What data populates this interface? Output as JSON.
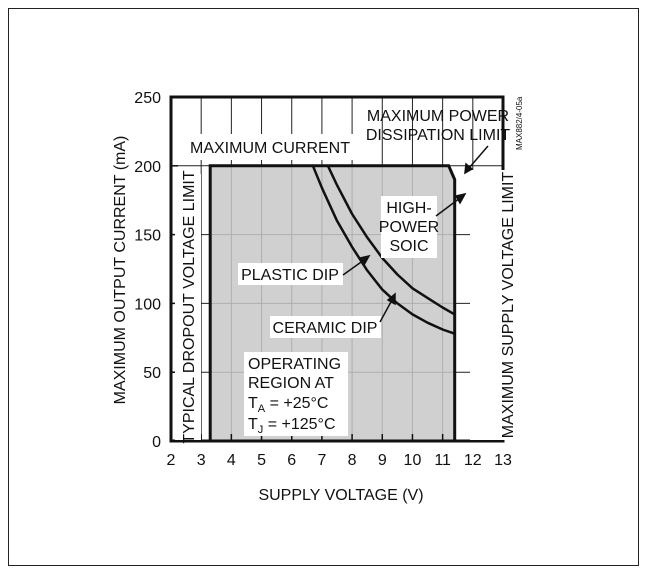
{
  "chart_data": {
    "type": "area",
    "xlabel": "SUPPLY VOLTAGE (V)",
    "ylabel": "MAXIMUM OUTPUT CURRENT (mA)",
    "xlim": [
      2,
      13
    ],
    "ylim": [
      0,
      250
    ],
    "x_ticks": [
      "2",
      "3",
      "4",
      "5",
      "6",
      "7",
      "8",
      "9",
      "10",
      "11",
      "12",
      "13"
    ],
    "y_ticks": [
      "0",
      "50",
      "100",
      "150",
      "200",
      "250"
    ],
    "grid": true,
    "operating_region": {
      "x": [
        3.3,
        3.3,
        11.2,
        11.4,
        11.4
      ],
      "y": [
        0,
        200,
        200,
        190,
        0
      ]
    },
    "series": [
      {
        "name": "PLASTIC DIP",
        "x": [
          6.7,
          7.0,
          7.5,
          8.0,
          8.5,
          9.0,
          9.5,
          10.0,
          10.5,
          11.0,
          11.4
        ],
        "y": [
          200,
          184,
          160,
          141,
          124,
          110,
          100,
          92,
          86,
          81,
          78
        ]
      },
      {
        "name": "HIGH-POWER SOIC",
        "x": [
          7.2,
          7.5,
          8.0,
          8.5,
          9.0,
          9.5,
          10.0,
          10.5,
          11.0,
          11.4
        ],
        "y": [
          200,
          186,
          165,
          148,
          133,
          121,
          111,
          104,
          97,
          92
        ]
      }
    ],
    "annotations": {
      "max_current": "MAXIMUM CURRENT",
      "max_power_1": "MAXIMUM POWER",
      "max_power_2": "DISSIPATION LIMIT",
      "dropout": "TYPICAL DROPOUT VOLTAGE LIMIT",
      "supply_limit": "MAXIMUM SUPPLY VOLTAGE LIMIT",
      "high_power": "HIGH-",
      "power_soic_1": "POWER",
      "power_soic_2": "SOIC",
      "plastic_dip": "PLASTIC DIP",
      "ceramic_dip": "CERAMIC DIP",
      "region_1": "OPERATING",
      "region_2": "REGION AT",
      "ta_main": "T",
      "ta_sub": "A",
      "ta_rest": " = +25°C",
      "tj_main": "T",
      "tj_sub": "J",
      "tj_rest": " = +125°C",
      "part_code": "MAX882/4-05a"
    }
  },
  "colors": {
    "region_fill": "#c8c8c8",
    "line": "#111111",
    "grid": "#222222"
  }
}
